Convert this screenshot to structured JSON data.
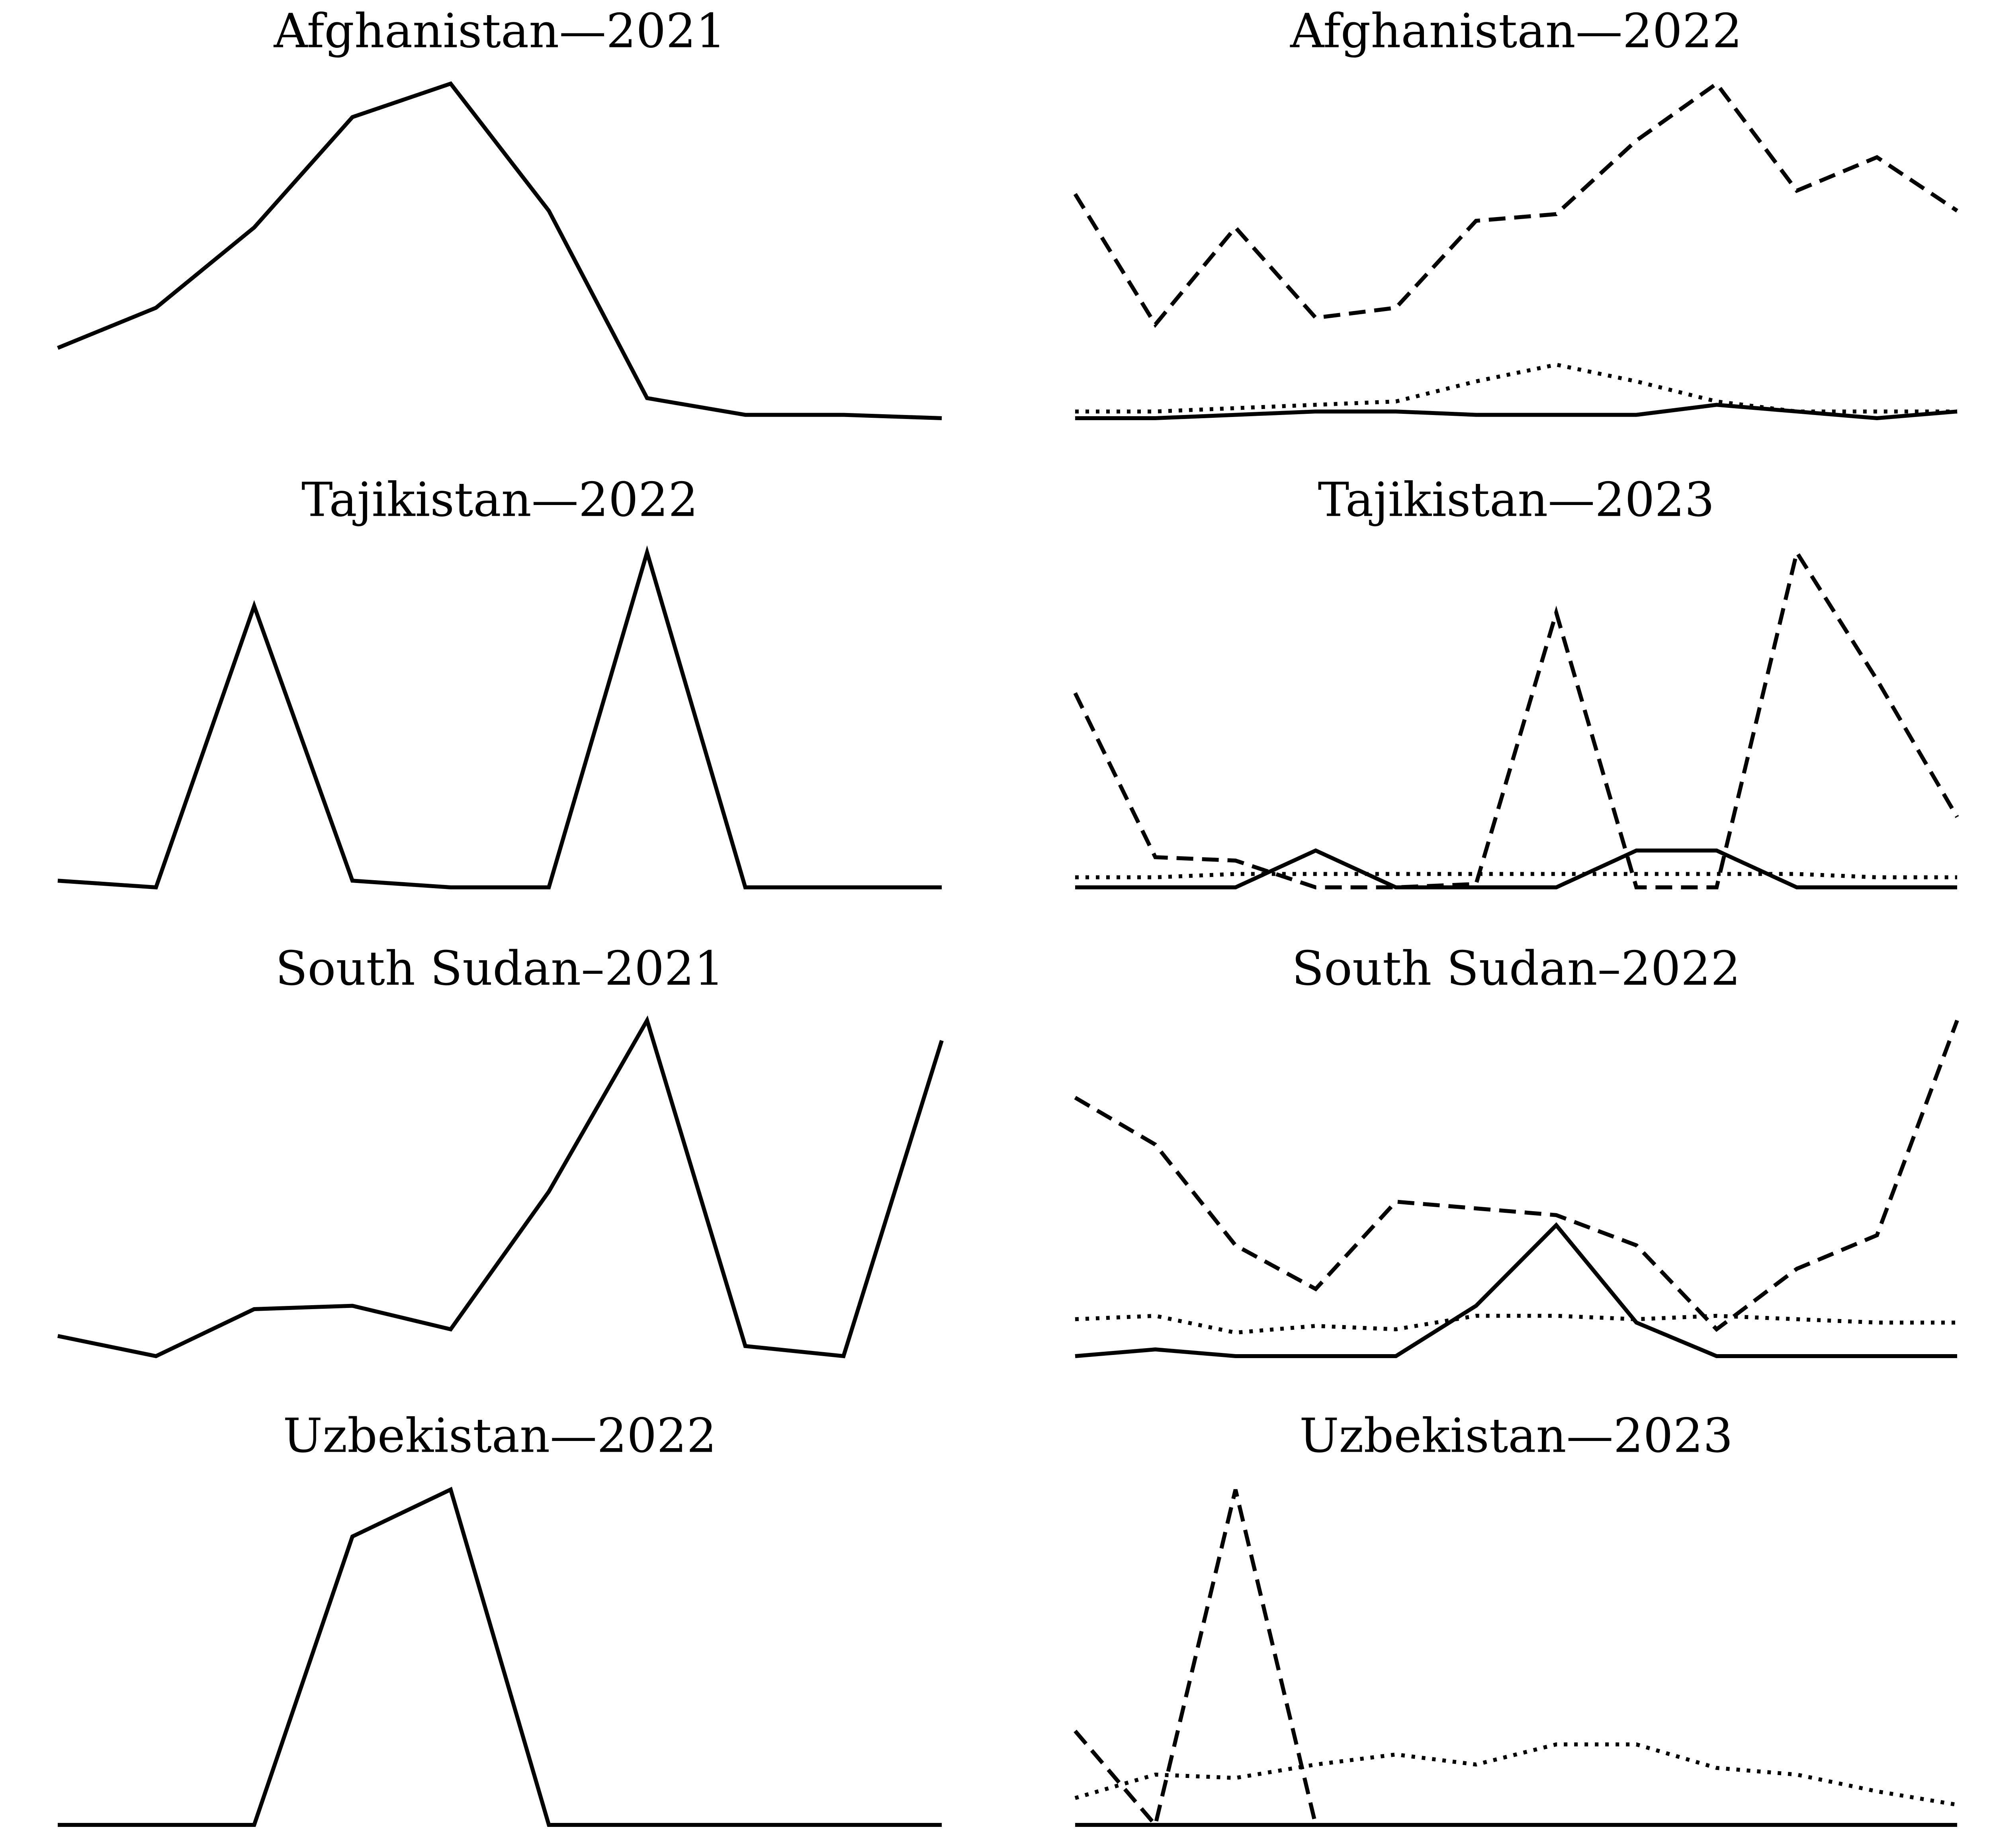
{
  "chart_data": [
    {
      "type": "line",
      "title": "Afghanistan—2021",
      "ylim": [
        0,
        100
      ],
      "x": [
        0,
        1,
        2,
        3,
        4,
        5,
        6,
        7,
        8,
        9
      ],
      "series": [
        {
          "style": "solid",
          "values": [
            21,
            33,
            57,
            90,
            100,
            62,
            6,
            1,
            1,
            0
          ]
        }
      ]
    },
    {
      "type": "line",
      "title": "Afghanistan—2022",
      "ylim": [
        0,
        100
      ],
      "x": [
        0,
        1,
        2,
        3,
        4,
        5,
        6,
        7,
        8,
        9,
        10,
        11
      ],
      "series": [
        {
          "style": "dashed",
          "values": [
            67,
            28,
            57,
            30,
            33,
            59,
            61,
            83,
            100,
            68,
            78,
            62
          ]
        },
        {
          "style": "dotted",
          "values": [
            2,
            2,
            3,
            4,
            5,
            11,
            16,
            11,
            5,
            2,
            2,
            2
          ]
        },
        {
          "style": "solid",
          "values": [
            0,
            0,
            1,
            2,
            2,
            1,
            1,
            1,
            4,
            2,
            0,
            2
          ]
        }
      ]
    },
    {
      "type": "line",
      "title": "Tajikistan—2022",
      "ylim": [
        0,
        100
      ],
      "x": [
        0,
        1,
        2,
        3,
        4,
        5,
        6,
        7,
        8,
        9
      ],
      "series": [
        {
          "style": "solid",
          "values": [
            2,
            0,
            84,
            2,
            0,
            0,
            100,
            0,
            0,
            0
          ]
        }
      ]
    },
    {
      "type": "line",
      "title": "Tajikistan—2023",
      "ylim": [
        0,
        100
      ],
      "x": [
        0,
        1,
        2,
        3,
        4,
        5,
        6,
        7,
        8,
        9,
        10,
        11
      ],
      "series": [
        {
          "style": "dashed",
          "values": [
            58,
            9,
            8,
            0,
            0,
            1,
            82,
            0,
            0,
            100,
            62,
            21
          ]
        },
        {
          "style": "dotted",
          "values": [
            3,
            3,
            4,
            4,
            4,
            4,
            4,
            4,
            4,
            4,
            3,
            3
          ]
        },
        {
          "style": "solid",
          "values": [
            0,
            0,
            0,
            11,
            0,
            0,
            0,
            11,
            11,
            0,
            0,
            0
          ]
        }
      ]
    },
    {
      "type": "line",
      "title": "South Sudan–2021",
      "ylim": [
        0,
        100
      ],
      "x": [
        0,
        1,
        2,
        3,
        4,
        5,
        6,
        7,
        8,
        9
      ],
      "series": [
        {
          "style": "solid",
          "values": [
            6,
            0,
            14,
            15,
            8,
            49,
            100,
            3,
            0,
            94
          ]
        }
      ]
    },
    {
      "type": "line",
      "title": "South Sudan–2022",
      "ylim": [
        0,
        100
      ],
      "x": [
        0,
        1,
        2,
        3,
        4,
        5,
        6,
        7,
        8,
        9,
        10,
        11
      ],
      "series": [
        {
          "style": "dashed",
          "values": [
            77,
            63,
            33,
            20,
            46,
            44,
            42,
            33,
            8,
            26,
            36,
            100
          ]
        },
        {
          "style": "dotted",
          "values": [
            11,
            12,
            7,
            9,
            8,
            12,
            12,
            11,
            12,
            11,
            10,
            10
          ]
        },
        {
          "style": "solid",
          "values": [
            0,
            2,
            0,
            0,
            0,
            15,
            39,
            10,
            0,
            0,
            0,
            0
          ]
        }
      ]
    },
    {
      "type": "line",
      "title": "Uzbekistan—2022",
      "ylim": [
        0,
        100
      ],
      "x": [
        0,
        1,
        2,
        3,
        4,
        5,
        6,
        7,
        8,
        9
      ],
      "series": [
        {
          "style": "solid",
          "values": [
            0,
            0,
            0,
            86,
            100,
            0,
            0,
            0,
            0,
            0
          ]
        }
      ]
    },
    {
      "type": "line",
      "title": "Uzbekistan—2023",
      "ylim": [
        0,
        100
      ],
      "x": [
        0,
        1,
        2,
        3,
        4,
        5,
        6,
        7,
        8,
        9,
        10,
        11
      ],
      "series": [
        {
          "style": "dashed",
          "values": [
            28,
            0,
            100,
            0,
            0,
            0,
            0,
            0,
            0,
            0,
            0,
            0
          ]
        },
        {
          "style": "dotted",
          "values": [
            8,
            15,
            14,
            18,
            21,
            18,
            24,
            24,
            17,
            15,
            10,
            6
          ]
        },
        {
          "style": "solid",
          "values": [
            0,
            0,
            0,
            0,
            0,
            0,
            0,
            0,
            0,
            0,
            0,
            0
          ]
        }
      ]
    }
  ]
}
